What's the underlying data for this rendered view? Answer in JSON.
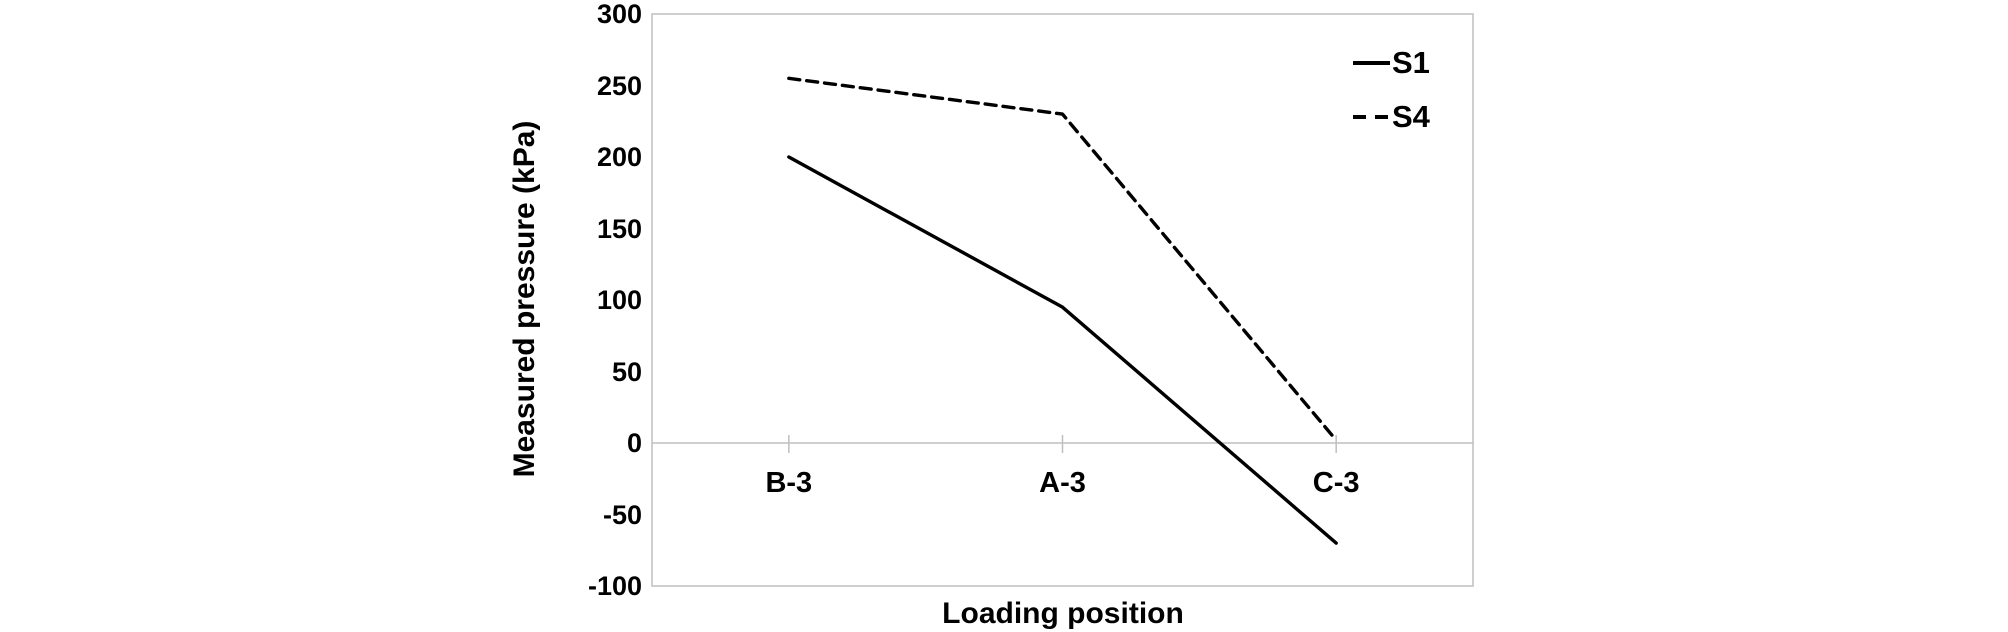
{
  "chart_data": {
    "type": "line",
    "categories": [
      "B-3",
      "A-3",
      "C-3"
    ],
    "series": [
      {
        "name": "S1",
        "style": "solid",
        "values": [
          200,
          95,
          -70
        ]
      },
      {
        "name": "S4",
        "style": "dashed",
        "values": [
          255,
          230,
          2
        ]
      }
    ],
    "title": "",
    "xlabel": "Loading position",
    "ylabel": "Measured pressure (kPa)",
    "ylim": [
      -100,
      300
    ],
    "yticks": [
      300,
      250,
      200,
      150,
      100,
      50,
      0,
      -50,
      -100
    ],
    "grid": "zero-baseline-only",
    "legend_position": "inside-top-right",
    "legend_entries": [
      "S1",
      "S4"
    ],
    "line_color": "#000000",
    "axis_color": "#bfbfbf",
    "background_color": "#ffffff"
  }
}
